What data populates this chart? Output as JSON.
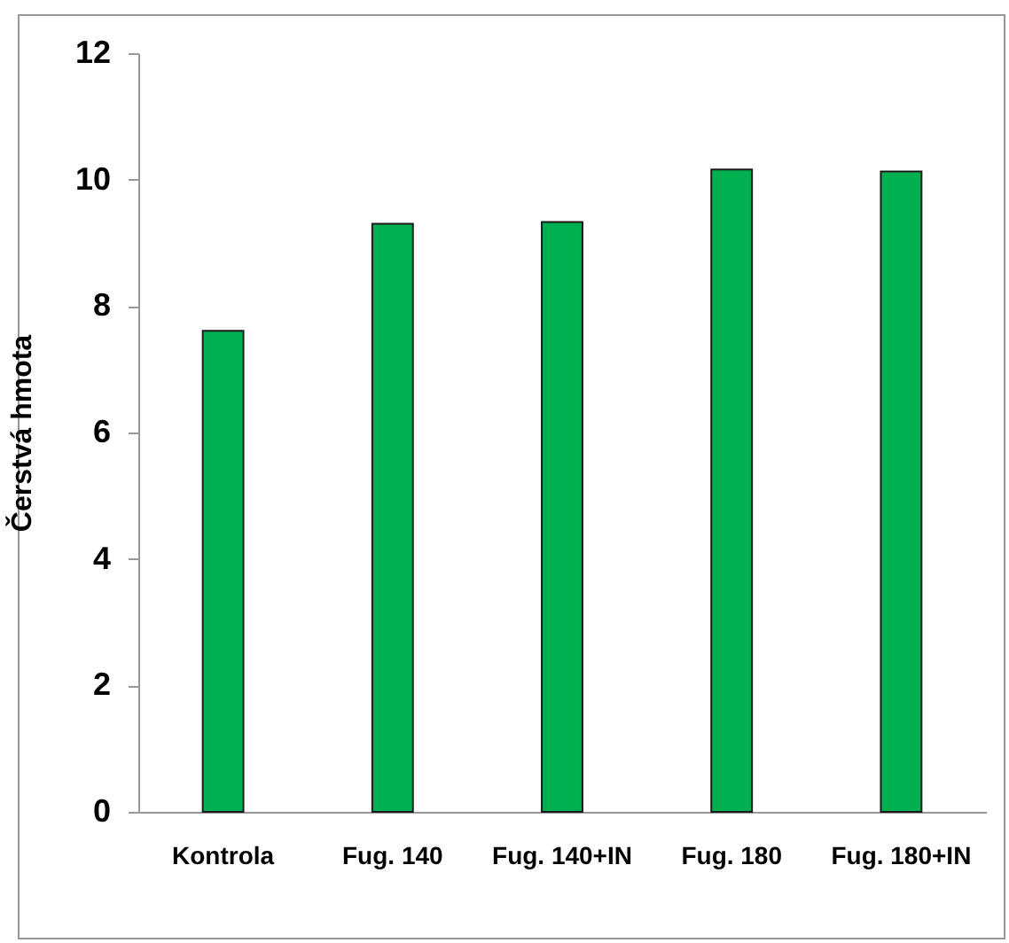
{
  "chart_data": {
    "type": "bar",
    "ylabel": "Čerstvá hmota",
    "categories": [
      "Kontrola",
      "Fug. 140",
      "Fug. 140+IN",
      "Fug. 180",
      "Fug. 180+IN"
    ],
    "values": [
      7.61,
      9.3,
      9.33,
      10.16,
      10.13
    ],
    "color": "#00b050",
    "ylim": [
      0,
      12
    ],
    "yticks": [
      0,
      2,
      4,
      6,
      8,
      10,
      12
    ],
    "grid": false
  }
}
